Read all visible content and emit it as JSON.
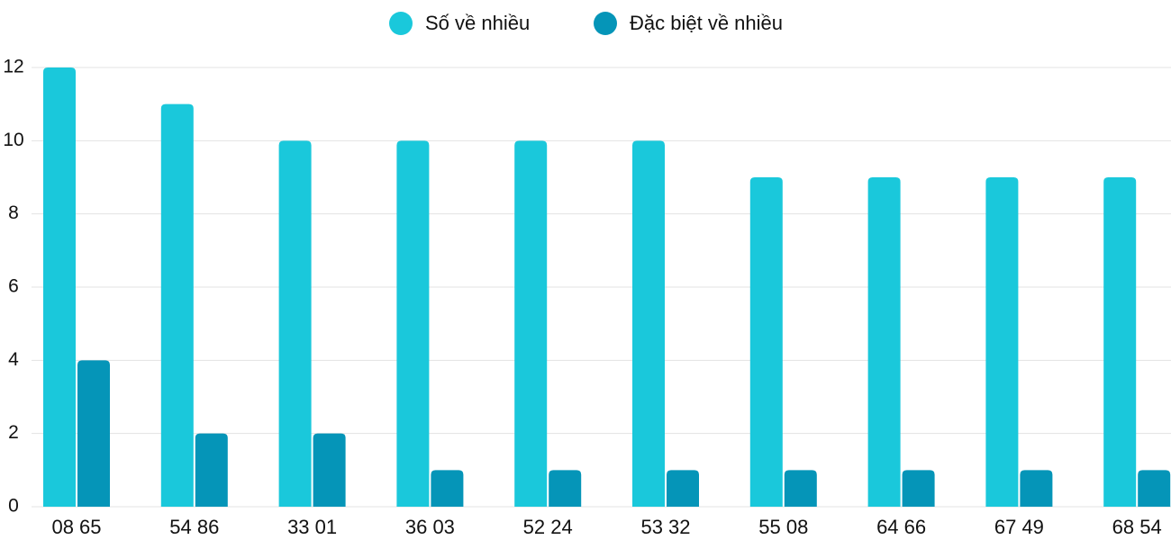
{
  "chart_data": {
    "type": "bar",
    "categories": [
      "08 65",
      "54 86",
      "33 01",
      "36 03",
      "52 24",
      "53 32",
      "55 08",
      "64 66",
      "67 49",
      "68 54"
    ],
    "series": [
      {
        "name": "Số về nhiều",
        "color": "#1ac8db",
        "values": [
          12,
          11,
          10,
          10,
          10,
          10,
          9,
          9,
          9,
          9
        ]
      },
      {
        "name": "Đặc biệt về nhiều",
        "color": "#0595b8",
        "values": [
          4,
          2,
          2,
          1,
          1,
          1,
          1,
          1,
          1,
          1
        ]
      }
    ],
    "ylim": [
      0,
      12
    ],
    "yticks": [
      0,
      2,
      4,
      6,
      8,
      10,
      12
    ],
    "grid": true
  }
}
